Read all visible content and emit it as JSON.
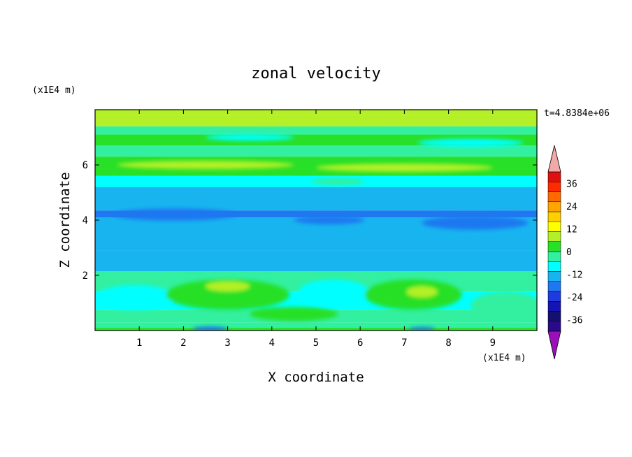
{
  "chart_data": {
    "type": "heatmap",
    "title": "zonal velocity",
    "xlabel": "X coordinate",
    "ylabel": "Z coordinate",
    "x_unit": "(x1E4 m)",
    "z_unit": "(x1E4 m)",
    "time_label": "t=4.8384e+06",
    "xlim": [
      0,
      10
    ],
    "ylim": [
      0,
      8
    ],
    "x_ticks": [
      1,
      2,
      3,
      4,
      5,
      6,
      7,
      8,
      9
    ],
    "y_ticks": [
      2,
      4,
      6
    ],
    "colorbar": {
      "levels": [
        -42,
        -36,
        -30,
        -24,
        -18,
        -12,
        -6,
        0,
        6,
        12,
        18,
        24,
        30,
        36,
        42
      ],
      "tick_labels": [
        36,
        24,
        12,
        0,
        -12,
        -24,
        -36
      ],
      "colors": [
        "#2a0a8a",
        "#141070",
        "#1414b4",
        "#1f3be0",
        "#1f78f0",
        "#18b4f0",
        "#00ffff",
        "#32f0a0",
        "#28e028",
        "#b4f028",
        "#ffff00",
        "#ffd000",
        "#ffa500",
        "#ff6a00",
        "#ff2a00",
        "#e01010"
      ],
      "over_color": "#f0a8a8",
      "under_color": "#9a10b8"
    },
    "field_bands": [
      {
        "z": [
          0.0,
          0.1
        ],
        "u": 10
      },
      {
        "z": [
          0.1,
          0.3
        ],
        "u": 4
      },
      {
        "z": [
          0.3,
          0.75
        ],
        "u": 0
      },
      {
        "z": [
          0.75,
          1.4
        ],
        "u": -4
      },
      {
        "z": [
          1.4,
          1.95
        ],
        "u": 0
      },
      {
        "z": [
          1.95,
          2.15
        ],
        "u": 4
      },
      {
        "z": [
          2.15,
          2.9
        ],
        "u": -8
      },
      {
        "z": [
          2.9,
          4.1
        ],
        "u": -10
      },
      {
        "z": [
          4.1,
          4.35
        ],
        "u": -14
      },
      {
        "z": [
          4.35,
          5.2
        ],
        "u": -8
      },
      {
        "z": [
          5.2,
          5.6
        ],
        "u": -4
      },
      {
        "z": [
          5.6,
          6.3
        ],
        "u": 10
      },
      {
        "z": [
          6.3,
          6.7
        ],
        "u": 0
      },
      {
        "z": [
          6.7,
          7.1
        ],
        "u": 6
      },
      {
        "z": [
          7.1,
          7.4
        ],
        "u": 0
      },
      {
        "z": [
          7.4,
          7.8
        ],
        "u": 12
      },
      {
        "z": [
          7.8,
          8.0
        ],
        "u": 14
      }
    ],
    "field_patches": [
      {
        "x": 1.8,
        "z": 4.2,
        "rx": 1.4,
        "rz": 0.22,
        "u": -16
      },
      {
        "x": 5.3,
        "z": 4.0,
        "rx": 0.8,
        "rz": 0.15,
        "u": -16
      },
      {
        "x": 8.6,
        "z": 3.9,
        "rx": 1.2,
        "rz": 0.25,
        "u": -16
      },
      {
        "x": 0.9,
        "z": 1.2,
        "rx": 0.9,
        "rz": 0.45,
        "u": -6
      },
      {
        "x": 5.4,
        "z": 1.4,
        "rx": 0.8,
        "rz": 0.45,
        "u": -6
      },
      {
        "x": 3.0,
        "z": 1.3,
        "rx": 1.4,
        "rz": 0.55,
        "u": 8
      },
      {
        "x": 7.2,
        "z": 1.3,
        "rx": 1.1,
        "rz": 0.55,
        "u": 10
      },
      {
        "x": 7.4,
        "z": 1.4,
        "rx": 0.35,
        "rz": 0.2,
        "u": 16
      },
      {
        "x": 3.0,
        "z": 1.6,
        "rx": 0.5,
        "rz": 0.18,
        "u": 14
      },
      {
        "x": 2.6,
        "z": 0.05,
        "rx": 0.4,
        "rz": 0.1,
        "u": -16
      },
      {
        "x": 7.4,
        "z": 0.05,
        "rx": 0.3,
        "rz": 0.08,
        "u": -16
      },
      {
        "x": 4.5,
        "z": 0.6,
        "rx": 1.0,
        "rz": 0.25,
        "u": 6
      },
      {
        "x": 9.3,
        "z": 0.9,
        "rx": 0.8,
        "rz": 0.5,
        "u": 2
      },
      {
        "x": 2.5,
        "z": 6.0,
        "rx": 2.0,
        "rz": 0.15,
        "u": 14
      },
      {
        "x": 7.0,
        "z": 5.9,
        "rx": 2.0,
        "rz": 0.15,
        "u": 14
      },
      {
        "x": 4.0,
        "z": 7.6,
        "rx": 2.5,
        "rz": 0.12,
        "u": 16
      },
      {
        "x": 5.5,
        "z": 5.4,
        "rx": 0.6,
        "rz": 0.12,
        "u": 0
      },
      {
        "x": 8.5,
        "z": 6.8,
        "rx": 1.2,
        "rz": 0.15,
        "u": -6
      },
      {
        "x": 3.5,
        "z": 7.0,
        "rx": 1.0,
        "rz": 0.12,
        "u": -6
      }
    ]
  }
}
